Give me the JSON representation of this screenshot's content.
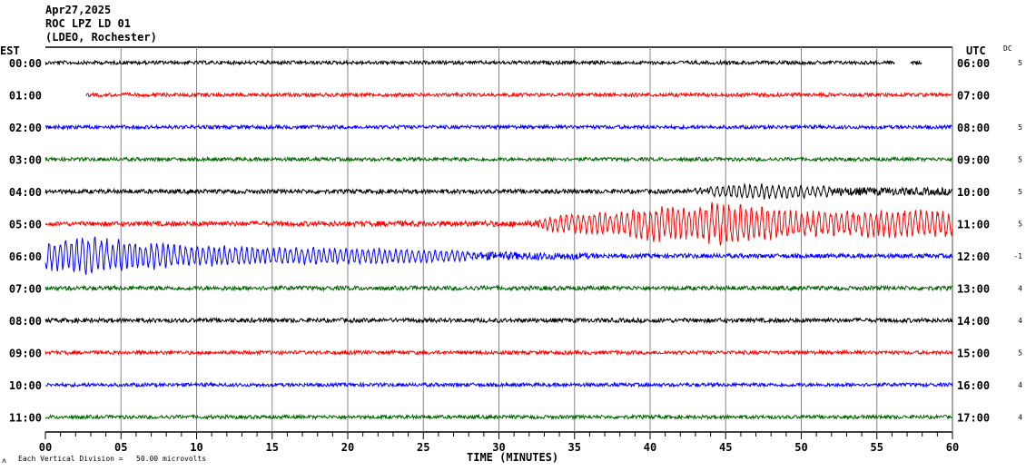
{
  "header": {
    "date": "Apr27,2025",
    "station": "ROC LPZ LD 01",
    "network": "(LDEO, Rochester)"
  },
  "left_axis_label": "EST",
  "right_axis_label": "UTC",
  "dc_label": "DC",
  "footer": {
    "scale_text": "Each Vertical Division =   50.00 microvolts",
    "corner_mark": "ʌ"
  },
  "chart_data": {
    "type": "line",
    "title": "ROC LPZ LD 01 helicorder",
    "xlabel": "TIME (MINUTES)",
    "xlim": [
      0,
      60
    ],
    "x_ticks": [
      "00",
      "05",
      "10",
      "15",
      "20",
      "25",
      "30",
      "35",
      "40",
      "45",
      "50",
      "55",
      "60"
    ],
    "minor_tick_step_minutes": 1,
    "grid": "vertical every 5 minutes",
    "rows": [
      {
        "est": "00:00",
        "utc": "06:00",
        "dc": "5",
        "color": "#000000",
        "start": 0,
        "end": 58,
        "gap": [
          56.2,
          57.2
        ],
        "amp": [
          [
            0,
            2.5
          ],
          [
            60,
            2.5
          ]
        ]
      },
      {
        "est": "01:00",
        "utc": "07:00",
        "dc": "",
        "color": "#ff0000",
        "start": 2.7,
        "end": 60,
        "amp": [
          [
            0,
            2.5
          ],
          [
            60,
            2.5
          ]
        ]
      },
      {
        "est": "02:00",
        "utc": "08:00",
        "dc": "5",
        "color": "#0000ff",
        "start": 0,
        "end": 60,
        "amp": [
          [
            0,
            2.5
          ],
          [
            60,
            2.5
          ]
        ]
      },
      {
        "est": "03:00",
        "utc": "09:00",
        "dc": "5",
        "color": "#006400",
        "start": 0,
        "end": 60,
        "amp": [
          [
            0,
            2.5
          ],
          [
            60,
            2.5
          ]
        ]
      },
      {
        "est": "04:00",
        "utc": "10:00",
        "dc": "5",
        "color": "#000000",
        "start": 0,
        "end": 60,
        "amp": [
          [
            0,
            3
          ],
          [
            42,
            3
          ],
          [
            44,
            6
          ],
          [
            47,
            9
          ],
          [
            52,
            6
          ],
          [
            60,
            5
          ]
        ]
      },
      {
        "est": "05:00",
        "utc": "11:00",
        "dc": "5",
        "color": "#ff0000",
        "start": 0,
        "end": 60,
        "amp": [
          [
            0,
            3
          ],
          [
            32,
            4
          ],
          [
            34,
            10
          ],
          [
            38,
            14
          ],
          [
            40,
            20
          ],
          [
            43,
            18
          ],
          [
            44,
            24
          ],
          [
            46,
            22
          ],
          [
            50,
            14
          ],
          [
            60,
            16
          ]
        ]
      },
      {
        "est": "06:00",
        "utc": "12:00",
        "dc": "-1",
        "color": "#0000ff",
        "start": 0,
        "end": 60,
        "amp": [
          [
            0,
            16
          ],
          [
            3,
            22
          ],
          [
            6,
            16
          ],
          [
            10,
            12
          ],
          [
            16,
            10
          ],
          [
            22,
            9
          ],
          [
            28,
            6
          ],
          [
            35,
            5
          ],
          [
            37,
            3
          ],
          [
            60,
            3
          ]
        ]
      },
      {
        "est": "07:00",
        "utc": "13:00",
        "dc": "4",
        "color": "#006400",
        "start": 0,
        "end": 60,
        "amp": [
          [
            0,
            3
          ],
          [
            60,
            3
          ]
        ]
      },
      {
        "est": "08:00",
        "utc": "14:00",
        "dc": "4",
        "color": "#000000",
        "start": 0,
        "end": 60,
        "amp": [
          [
            0,
            3
          ],
          [
            60,
            3
          ]
        ]
      },
      {
        "est": "09:00",
        "utc": "15:00",
        "dc": "5",
        "color": "#ff0000",
        "start": 0,
        "end": 60,
        "amp": [
          [
            0,
            2.5
          ],
          [
            60,
            2.5
          ]
        ]
      },
      {
        "est": "10:00",
        "utc": "16:00",
        "dc": "4",
        "color": "#0000ff",
        "start": 0,
        "end": 60,
        "amp": [
          [
            0,
            2.5
          ],
          [
            60,
            2.5
          ]
        ]
      },
      {
        "est": "11:00",
        "utc": "17:00",
        "dc": "4",
        "color": "#006400",
        "start": 0,
        "end": 60,
        "amp": [
          [
            0,
            2.5
          ],
          [
            60,
            2.5
          ]
        ]
      }
    ]
  }
}
